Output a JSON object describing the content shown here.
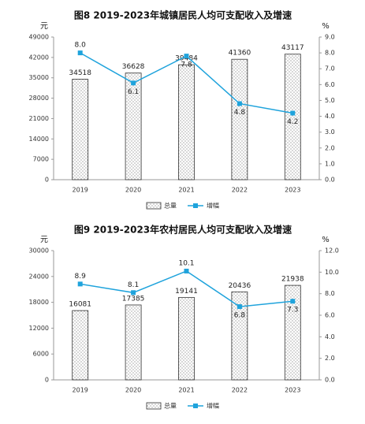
{
  "chart_data": [
    {
      "type": "bar-line",
      "title": "图8 2019-2023年城镇居民人均可支配收入及增速",
      "y_label": "元",
      "y2_label": "%",
      "categories": [
        "2019",
        "2020",
        "2021",
        "2022",
        "2023"
      ],
      "series": [
        {
          "name": "总量",
          "color": "#333333",
          "values": [
            34518,
            36628,
            39484,
            41360,
            43117
          ]
        },
        {
          "name": "增幅",
          "color": "#1fa3dc",
          "axis": "y2",
          "values": [
            8,
            6.1,
            7.8,
            4.8,
            4.2
          ],
          "value_labels": [
            "8.0",
            "6.1",
            "7.8",
            "4.8",
            "4.2"
          ]
        }
      ],
      "ylim": [
        0,
        49000
      ],
      "yticks": [
        0,
        7000,
        14000,
        21000,
        28000,
        35000,
        42000,
        49000
      ],
      "y2lim": [
        0,
        9
      ],
      "y2ticks": [
        {
          "value": 0,
          "label": "0.0"
        },
        {
          "value": 1,
          "label": "1.0"
        },
        {
          "value": 2,
          "label": "2.0"
        },
        {
          "value": 3,
          "label": "3.0"
        },
        {
          "value": 4,
          "label": "4.0"
        },
        {
          "value": 5,
          "label": "5.0"
        },
        {
          "value": 6,
          "label": "6.0"
        },
        {
          "value": 7,
          "label": "7.0"
        },
        {
          "value": 8,
          "label": "8.0"
        },
        {
          "value": 9,
          "label": "9.0"
        }
      ]
    },
    {
      "type": "bar-line",
      "title": "图9 2019-2023年农村居民人均可支配收入及增速",
      "y_label": "元",
      "y2_label": "%",
      "categories": [
        "2019",
        "2020",
        "2021",
        "2022",
        "2023"
      ],
      "series": [
        {
          "name": "总量",
          "color": "#333333",
          "values": [
            16081,
            17385,
            19141,
            20436,
            21938
          ]
        },
        {
          "name": "增幅",
          "color": "#1fa3dc",
          "axis": "y2",
          "values": [
            8.9,
            8.1,
            10.1,
            6.8,
            7.3
          ]
        }
      ],
      "ylim": [
        0,
        30000
      ],
      "yticks": [
        0,
        6000,
        12000,
        18000,
        24000,
        30000
      ],
      "y2lim": [
        0,
        12
      ],
      "y2ticks": [
        {
          "value": 0,
          "label": "0.0"
        },
        {
          "value": 2,
          "label": "2.0"
        },
        {
          "value": 4,
          "label": "4.0"
        },
        {
          "value": 6,
          "label": "6.0"
        },
        {
          "value": 8,
          "label": "8.0"
        },
        {
          "value": 10,
          "label": "10.0"
        },
        {
          "value": 12,
          "label": "12.0"
        }
      ]
    }
  ]
}
